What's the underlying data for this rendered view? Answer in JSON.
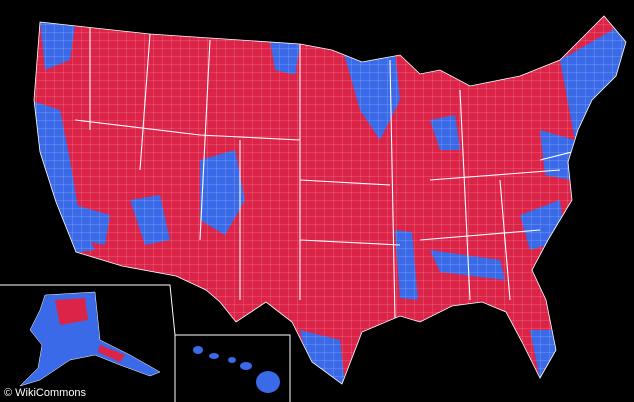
{
  "credit": "© WikiCommons"
}
